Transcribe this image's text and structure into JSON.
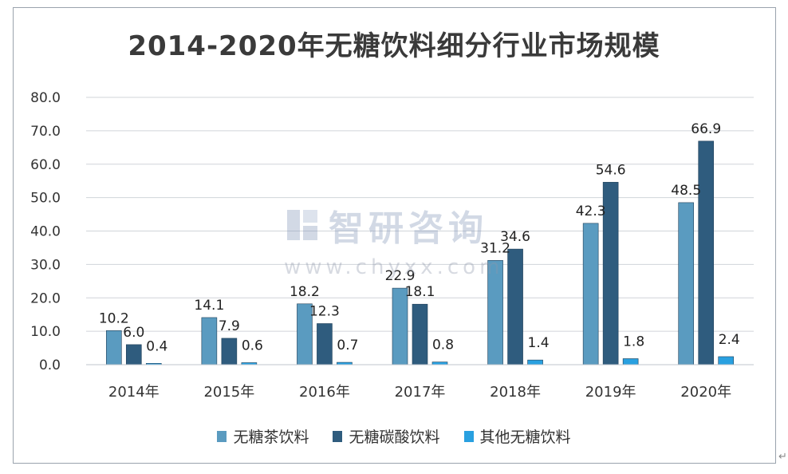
{
  "title": "2014-2020年无糖饮料细分行业市场规模",
  "watermark": {
    "brand": "智研咨询",
    "url": "www.chyxx.com"
  },
  "corner_glyph": "↵",
  "colors": {
    "series": [
      "#5a9bc0",
      "#2f5c7e",
      "#29a0e0"
    ],
    "grid": "#d0d4d9",
    "axis_text": "#333333",
    "label_text": "#222222"
  },
  "chart_data": {
    "type": "bar",
    "categories": [
      "2014年",
      "2015年",
      "2016年",
      "2017年",
      "2018年",
      "2019年",
      "2020年"
    ],
    "series": [
      {
        "name": "无糖茶饮料",
        "values": [
          10.2,
          14.1,
          18.2,
          22.9,
          31.2,
          42.3,
          48.5
        ]
      },
      {
        "name": "无糖碳酸饮料",
        "values": [
          6.0,
          7.9,
          12.3,
          18.1,
          34.6,
          54.6,
          66.9
        ]
      },
      {
        "name": "其他无糖饮料",
        "values": [
          0.4,
          0.6,
          0.7,
          0.8,
          1.4,
          1.8,
          2.4
        ]
      }
    ],
    "ylim": [
      0,
      80
    ],
    "yticks": [
      "0.0",
      "10.0",
      "20.0",
      "30.0",
      "40.0",
      "50.0",
      "60.0",
      "70.0",
      "80.0"
    ],
    "grid": true,
    "legend": "bottom",
    "data_labels": true
  }
}
